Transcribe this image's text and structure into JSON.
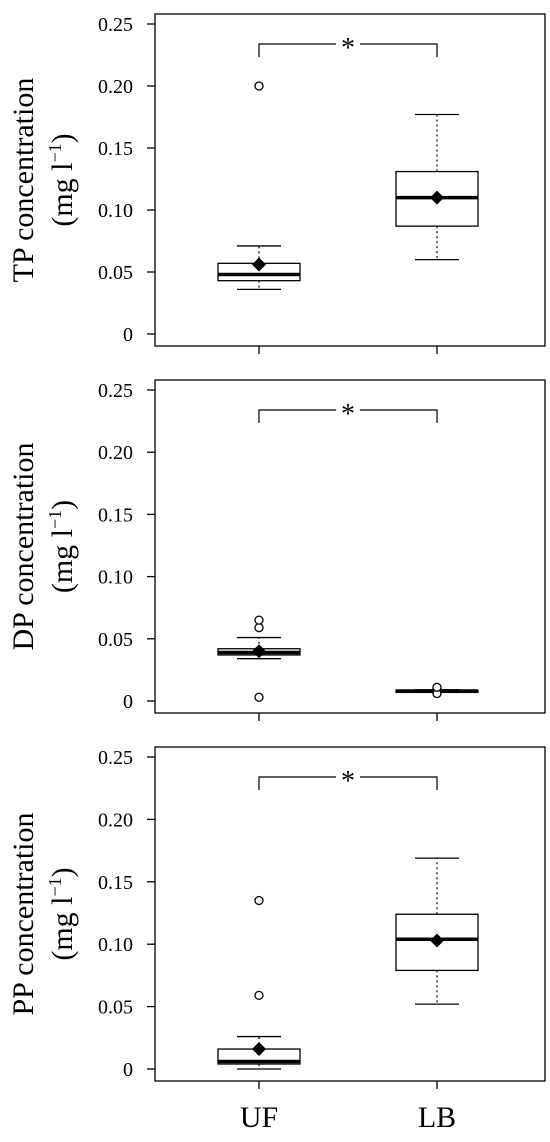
{
  "chart_data": [
    {
      "type": "box",
      "ylabel_line1": "TP concentration",
      "ylabel_line2": "(mg l",
      "ylabel_sup": "−1",
      "ylabel_close": ")",
      "ylim": [
        0,
        0.25
      ],
      "yticks": [
        0,
        0.05,
        0.1,
        0.15,
        0.2,
        0.25
      ],
      "ytick_labels": [
        "0",
        "0.05",
        "0.10",
        "0.15",
        "0.20",
        "0.25"
      ],
      "categories": [
        "UF",
        "LB"
      ],
      "significance": "*",
      "boxes": [
        {
          "category": "UF",
          "whisker_low": 0.036,
          "q1": 0.043,
          "median": 0.048,
          "q3": 0.057,
          "whisker_high": 0.071,
          "mean": 0.056,
          "outliers": [
            0.2
          ]
        },
        {
          "category": "LB",
          "whisker_low": 0.06,
          "q1": 0.087,
          "median": 0.11,
          "q3": 0.131,
          "whisker_high": 0.177,
          "mean": 0.11,
          "outliers": []
        }
      ]
    },
    {
      "type": "box",
      "ylabel_line1": "DP concentration",
      "ylabel_line2": "(mg l",
      "ylabel_sup": "−1",
      "ylabel_close": ")",
      "ylim": [
        0,
        0.25
      ],
      "yticks": [
        0,
        0.05,
        0.1,
        0.15,
        0.2,
        0.25
      ],
      "ytick_labels": [
        "0",
        "0.05",
        "0.10",
        "0.15",
        "0.20",
        "0.25"
      ],
      "categories": [
        "UF",
        "LB"
      ],
      "significance": "*",
      "boxes": [
        {
          "category": "UF",
          "whisker_low": 0.034,
          "q1": 0.037,
          "median": 0.039,
          "q3": 0.042,
          "whisker_high": 0.051,
          "mean": 0.04,
          "outliers": [
            0.059,
            0.065,
            0.003
          ]
        },
        {
          "category": "LB",
          "whisker_low": 0.007,
          "q1": 0.0075,
          "median": 0.008,
          "q3": 0.0085,
          "whisker_high": 0.009,
          "mean": 0.008,
          "outliers": [
            0.006,
            0.011
          ]
        }
      ]
    },
    {
      "type": "box",
      "ylabel_line1": "PP concentration",
      "ylabel_line2": "(mg l",
      "ylabel_sup": "−1",
      "ylabel_close": ")",
      "ylim": [
        0,
        0.25
      ],
      "yticks": [
        0,
        0.05,
        0.1,
        0.15,
        0.2,
        0.25
      ],
      "ytick_labels": [
        "0",
        "0.05",
        "0.10",
        "0.15",
        "0.20",
        "0.25"
      ],
      "categories": [
        "UF",
        "LB"
      ],
      "significance": "*",
      "boxes": [
        {
          "category": "UF",
          "whisker_low": 0.0,
          "q1": 0.004,
          "median": 0.006,
          "q3": 0.016,
          "whisker_high": 0.026,
          "mean": 0.016,
          "outliers": [
            0.059,
            0.135
          ]
        },
        {
          "category": "LB",
          "whisker_low": 0.052,
          "q1": 0.079,
          "median": 0.104,
          "q3": 0.124,
          "whisker_high": 0.169,
          "mean": 0.103,
          "outliers": []
        }
      ]
    }
  ],
  "x_axis_labels": [
    "UF",
    "LB"
  ]
}
